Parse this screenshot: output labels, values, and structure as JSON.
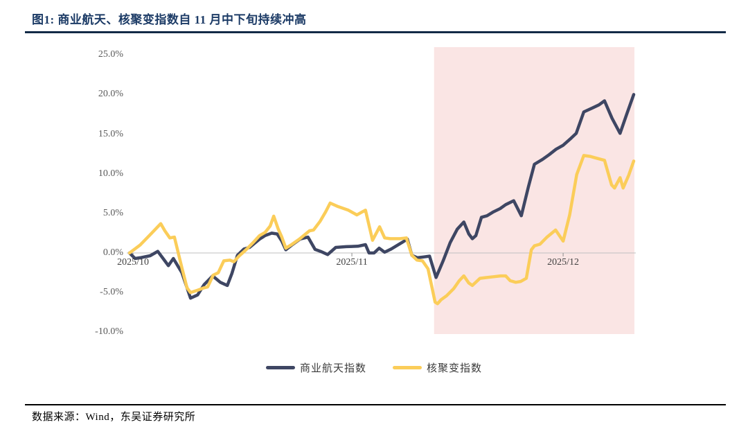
{
  "title": "图1:  商业航天、核聚变指数自 11 月中下旬持续冲高",
  "source": "数据来源：Wind，东吴证券研究所",
  "colors": {
    "title": "#1c3b66",
    "aerospace_line": "#3e4663",
    "fusion_line": "#fbcd59",
    "highlight_band": "#fae5e4",
    "zero_line": "#bfbfbf",
    "axis_text": "#595959"
  },
  "legend": [
    {
      "label": "商业航天指数",
      "color": "#3e4663"
    },
    {
      "label": "核聚变指数",
      "color": "#fbcd59"
    }
  ],
  "chart_data": {
    "type": "line",
    "title": "商业航天、核聚变指数自 11 月中下旬持续冲高",
    "xlabel": "",
    "ylabel": "",
    "ylim": [
      -10,
      25
    ],
    "y_ticks": [
      "25.0%",
      "20.0%",
      "15.0%",
      "10.0%",
      "5.0%",
      "0.0%",
      "-5.0%",
      "-10.0%"
    ],
    "x_ticks": [
      {
        "label": "2025/10",
        "pos": 0.007
      },
      {
        "label": "2025/11",
        "pos": 0.441
      },
      {
        "label": "2025/12",
        "pos": 0.86
      }
    ],
    "grid": false,
    "zero_line": true,
    "legend_position": "bottom",
    "highlight_region": {
      "from": 0.604,
      "to": 1.0,
      "color": "#fae5e4"
    },
    "series": [
      {
        "name": "商业航天指数",
        "color": "#3e4663",
        "unit": "%",
        "points": [
          [
            0.0,
            0.0
          ],
          [
            0.011,
            -0.7
          ],
          [
            0.021,
            -0.6
          ],
          [
            0.041,
            -0.35
          ],
          [
            0.056,
            0.2
          ],
          [
            0.07,
            -1.0
          ],
          [
            0.077,
            -1.6
          ],
          [
            0.087,
            -0.7
          ],
          [
            0.104,
            -2.5
          ],
          [
            0.121,
            -5.7
          ],
          [
            0.135,
            -5.3
          ],
          [
            0.148,
            -4.0
          ],
          [
            0.165,
            -2.9
          ],
          [
            0.18,
            -3.7
          ],
          [
            0.194,
            -4.1
          ],
          [
            0.203,
            -2.6
          ],
          [
            0.214,
            -0.3
          ],
          [
            0.227,
            0.5
          ],
          [
            0.238,
            0.7
          ],
          [
            0.258,
            1.75
          ],
          [
            0.269,
            2.2
          ],
          [
            0.282,
            2.5
          ],
          [
            0.293,
            2.4
          ],
          [
            0.302,
            1.5
          ],
          [
            0.31,
            0.4
          ],
          [
            0.324,
            1.1
          ],
          [
            0.338,
            1.75
          ],
          [
            0.354,
            2.0
          ],
          [
            0.368,
            0.45
          ],
          [
            0.379,
            0.2
          ],
          [
            0.393,
            -0.2
          ],
          [
            0.409,
            0.7
          ],
          [
            0.43,
            0.8
          ],
          [
            0.453,
            0.85
          ],
          [
            0.468,
            1.05
          ],
          [
            0.475,
            0.0
          ],
          [
            0.485,
            0.0
          ],
          [
            0.495,
            0.6
          ],
          [
            0.506,
            0.1
          ],
          [
            0.519,
            0.5
          ],
          [
            0.54,
            1.3
          ],
          [
            0.551,
            1.75
          ],
          [
            0.56,
            -0.3
          ],
          [
            0.571,
            -0.6
          ],
          [
            0.584,
            -0.5
          ],
          [
            0.595,
            -0.4
          ],
          [
            0.608,
            -3.1
          ],
          [
            0.622,
            -1.0
          ],
          [
            0.636,
            1.3
          ],
          [
            0.65,
            3.0
          ],
          [
            0.663,
            3.9
          ],
          [
            0.673,
            2.4
          ],
          [
            0.68,
            1.8
          ],
          [
            0.687,
            2.2
          ],
          [
            0.698,
            4.5
          ],
          [
            0.709,
            4.7
          ],
          [
            0.722,
            5.2
          ],
          [
            0.735,
            5.6
          ],
          [
            0.746,
            6.1
          ],
          [
            0.762,
            6.6
          ],
          [
            0.777,
            4.7
          ],
          [
            0.791,
            8.3
          ],
          [
            0.803,
            11.2
          ],
          [
            0.819,
            11.8
          ],
          [
            0.832,
            12.4
          ],
          [
            0.846,
            13.1
          ],
          [
            0.86,
            13.6
          ],
          [
            0.876,
            14.5
          ],
          [
            0.886,
            15.1
          ],
          [
            0.901,
            17.8
          ],
          [
            0.918,
            18.3
          ],
          [
            0.931,
            18.7
          ],
          [
            0.942,
            19.2
          ],
          [
            0.957,
            17.0
          ],
          [
            0.973,
            15.1
          ],
          [
            0.986,
            17.5
          ],
          [
            1.0,
            20.0
          ]
        ]
      },
      {
        "name": "核聚变指数",
        "color": "#fbcd59",
        "unit": "%",
        "points": [
          [
            0.0,
            0.0
          ],
          [
            0.021,
            1.0
          ],
          [
            0.041,
            2.3
          ],
          [
            0.062,
            3.7
          ],
          [
            0.07,
            2.8
          ],
          [
            0.08,
            1.9
          ],
          [
            0.089,
            2.0
          ],
          [
            0.104,
            -1.9
          ],
          [
            0.114,
            -4.4
          ],
          [
            0.121,
            -5.0
          ],
          [
            0.135,
            -4.7
          ],
          [
            0.148,
            -4.4
          ],
          [
            0.155,
            -4.3
          ],
          [
            0.166,
            -2.8
          ],
          [
            0.176,
            -2.5
          ],
          [
            0.187,
            -1.0
          ],
          [
            0.199,
            -0.9
          ],
          [
            0.207,
            -1.1
          ],
          [
            0.217,
            -0.4
          ],
          [
            0.231,
            0.4
          ],
          [
            0.245,
            1.3
          ],
          [
            0.258,
            2.2
          ],
          [
            0.269,
            2.6
          ],
          [
            0.279,
            3.4
          ],
          [
            0.286,
            4.65
          ],
          [
            0.295,
            3.0
          ],
          [
            0.302,
            2.0
          ],
          [
            0.31,
            0.6
          ],
          [
            0.32,
            1.0
          ],
          [
            0.337,
            1.75
          ],
          [
            0.357,
            2.8
          ],
          [
            0.365,
            2.9
          ],
          [
            0.378,
            4.0
          ],
          [
            0.389,
            5.2
          ],
          [
            0.398,
            6.3
          ],
          [
            0.412,
            5.9
          ],
          [
            0.434,
            5.4
          ],
          [
            0.451,
            4.8
          ],
          [
            0.462,
            5.2
          ],
          [
            0.468,
            5.4
          ],
          [
            0.475,
            3.5
          ],
          [
            0.482,
            1.6
          ],
          [
            0.496,
            3.3
          ],
          [
            0.506,
            1.9
          ],
          [
            0.517,
            1.8
          ],
          [
            0.537,
            1.8
          ],
          [
            0.549,
            1.9
          ],
          [
            0.56,
            -0.3
          ],
          [
            0.57,
            -0.9
          ],
          [
            0.581,
            -1.0
          ],
          [
            0.592,
            -2.0
          ],
          [
            0.606,
            -6.2
          ],
          [
            0.611,
            -6.4
          ],
          [
            0.618,
            -5.9
          ],
          [
            0.629,
            -5.4
          ],
          [
            0.643,
            -4.5
          ],
          [
            0.654,
            -3.5
          ],
          [
            0.663,
            -2.9
          ],
          [
            0.673,
            -3.8
          ],
          [
            0.68,
            -4.1
          ],
          [
            0.695,
            -3.2
          ],
          [
            0.709,
            -3.1
          ],
          [
            0.722,
            -3.0
          ],
          [
            0.736,
            -2.9
          ],
          [
            0.746,
            -2.9
          ],
          [
            0.755,
            -3.5
          ],
          [
            0.766,
            -3.7
          ],
          [
            0.776,
            -3.6
          ],
          [
            0.787,
            -3.2
          ],
          [
            0.797,
            0.4
          ],
          [
            0.803,
            0.9
          ],
          [
            0.814,
            1.1
          ],
          [
            0.828,
            2.0
          ],
          [
            0.845,
            2.9
          ],
          [
            0.86,
            1.5
          ],
          [
            0.873,
            4.8
          ],
          [
            0.887,
            9.9
          ],
          [
            0.901,
            12.3
          ],
          [
            0.913,
            12.2
          ],
          [
            0.924,
            12.0
          ],
          [
            0.942,
            11.7
          ],
          [
            0.956,
            8.6
          ],
          [
            0.962,
            8.2
          ],
          [
            0.973,
            9.5
          ],
          [
            0.979,
            8.2
          ],
          [
            0.99,
            9.8
          ],
          [
            1.0,
            11.6
          ]
        ]
      }
    ]
  }
}
